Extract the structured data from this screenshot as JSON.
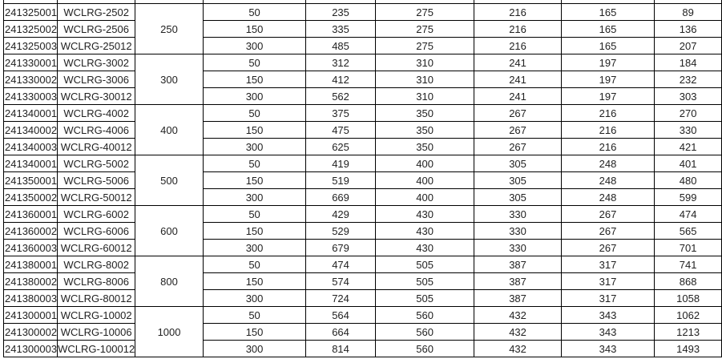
{
  "rows": [
    {
      "code": "241325001",
      "model": "WCLRG-2502",
      "group": "250",
      "c1": "50",
      "c2": "235",
      "c3": "275",
      "c4": "216",
      "c5": "165",
      "c6": "89"
    },
    {
      "code": "241325002",
      "model": "WCLRG-2506",
      "group": "250",
      "c1": "150",
      "c2": "335",
      "c3": "275",
      "c4": "216",
      "c5": "165",
      "c6": "136"
    },
    {
      "code": "241325003",
      "model": "WCLRG-25012",
      "group": "250",
      "c1": "300",
      "c2": "485",
      "c3": "275",
      "c4": "216",
      "c5": "165",
      "c6": "207"
    },
    {
      "code": "241330001",
      "model": "WCLRG-3002",
      "group": "300",
      "c1": "50",
      "c2": "312",
      "c3": "310",
      "c4": "241",
      "c5": "197",
      "c6": "184"
    },
    {
      "code": "241330002",
      "model": "WCLRG-3006",
      "group": "300",
      "c1": "150",
      "c2": "412",
      "c3": "310",
      "c4": "241",
      "c5": "197",
      "c6": "232"
    },
    {
      "code": "241330003",
      "model": "WCLRG-30012",
      "group": "300",
      "c1": "300",
      "c2": "562",
      "c3": "310",
      "c4": "241",
      "c5": "197",
      "c6": "303"
    },
    {
      "code": "241340001",
      "model": "WCLRG-4002",
      "group": "400",
      "c1": "50",
      "c2": "375",
      "c3": "350",
      "c4": "267",
      "c5": "216",
      "c6": "270"
    },
    {
      "code": "241340002",
      "model": "WCLRG-4006",
      "group": "400",
      "c1": "150",
      "c2": "475",
      "c3": "350",
      "c4": "267",
      "c5": "216",
      "c6": "330"
    },
    {
      "code": "241340003",
      "model": "WCLRG-40012",
      "group": "400",
      "c1": "300",
      "c2": "625",
      "c3": "350",
      "c4": "267",
      "c5": "216",
      "c6": "421"
    },
    {
      "code": "241340001",
      "model": "WCLRG-5002",
      "group": "500",
      "c1": "50",
      "c2": "419",
      "c3": "400",
      "c4": "305",
      "c5": "248",
      "c6": "401"
    },
    {
      "code": "241350001",
      "model": "WCLRG-5006",
      "group": "500",
      "c1": "150",
      "c2": "519",
      "c3": "400",
      "c4": "305",
      "c5": "248",
      "c6": "480"
    },
    {
      "code": "241350002",
      "model": "WCLRG-50012",
      "group": "500",
      "c1": "300",
      "c2": "669",
      "c3": "400",
      "c4": "305",
      "c5": "248",
      "c6": "599"
    },
    {
      "code": "241360001",
      "model": "WCLRG-6002",
      "group": "600",
      "c1": "50",
      "c2": "429",
      "c3": "430",
      "c4": "330",
      "c5": "267",
      "c6": "474"
    },
    {
      "code": "241360002",
      "model": "WCLRG-6006",
      "group": "600",
      "c1": "150",
      "c2": "529",
      "c3": "430",
      "c4": "330",
      "c5": "267",
      "c6": "565"
    },
    {
      "code": "241360003",
      "model": "WCLRG-60012",
      "group": "600",
      "c1": "300",
      "c2": "679",
      "c3": "430",
      "c4": "330",
      "c5": "267",
      "c6": "701"
    },
    {
      "code": "241380001",
      "model": "WCLRG-8002",
      "group": "800",
      "c1": "50",
      "c2": "474",
      "c3": "505",
      "c4": "387",
      "c5": "317",
      "c6": "741"
    },
    {
      "code": "241380002",
      "model": "WCLRG-8006",
      "group": "800",
      "c1": "150",
      "c2": "574",
      "c3": "505",
      "c4": "387",
      "c5": "317",
      "c6": "868"
    },
    {
      "code": "241380003",
      "model": "WCLRG-80012",
      "group": "800",
      "c1": "300",
      "c2": "724",
      "c3": "505",
      "c4": "387",
      "c5": "317",
      "c6": "1058"
    },
    {
      "code": "241300001",
      "model": "WCLRG-10002",
      "group": "1000",
      "c1": "50",
      "c2": "564",
      "c3": "560",
      "c4": "432",
      "c5": "343",
      "c6": "1062"
    },
    {
      "code": "241300002",
      "model": "WCLRG-10006",
      "group": "1000",
      "c1": "150",
      "c2": "664",
      "c3": "560",
      "c4": "432",
      "c5": "343",
      "c6": "1213"
    },
    {
      "code": "241300003",
      "model": "WCLRG-100012",
      "group": "1000",
      "c1": "300",
      "c2": "814",
      "c3": "560",
      "c4": "432",
      "c5": "343",
      "c6": "1493"
    }
  ]
}
